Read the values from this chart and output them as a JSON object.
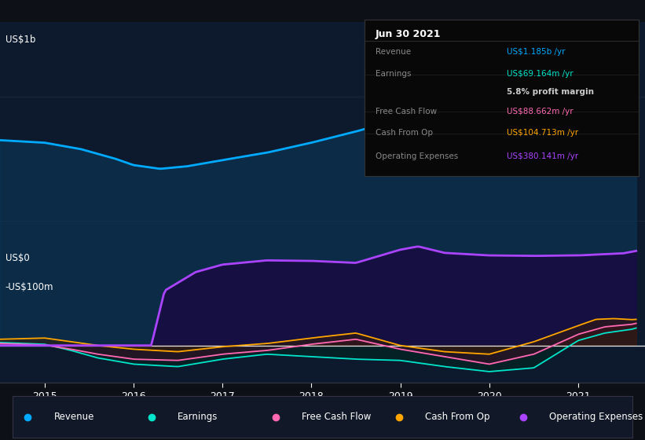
{
  "bg_color": "#0d1117",
  "plot_bg_color": "#0d1a2e",
  "title_box": {
    "date": "Jun 30 2021",
    "rows": [
      {
        "label": "Revenue",
        "value": "US$1.185b /yr",
        "value_color": "#00aaff"
      },
      {
        "label": "Earnings",
        "value": "US$69.164m /yr",
        "value_color": "#00e5cc"
      },
      {
        "label": "",
        "value": "5.8% profit margin",
        "value_color": "#cccccc"
      },
      {
        "label": "Free Cash Flow",
        "value": "US$88.662m /yr",
        "value_color": "#ff69b4"
      },
      {
        "label": "Cash From Op",
        "value": "US$104.713m /yr",
        "value_color": "#ffa500"
      },
      {
        "label": "Operating Expenses",
        "value": "US$380.141m /yr",
        "value_color": "#aa44ff"
      }
    ],
    "label_color": "#888888",
    "bg_color": "#080808",
    "border_color": "#333333"
  },
  "ylabel_top": "US$1b",
  "ylabel_zero": "US$0",
  "ylabel_bottom": "-US$100m",
  "x_ticks": [
    2015,
    2016,
    2017,
    2018,
    2019,
    2020,
    2021
  ],
  "ylim": [
    -150,
    1300
  ],
  "grid_color": "#1a2540",
  "legend_bg": "#111827",
  "legend_border": "#333344",
  "revenue_color": "#00aaff",
  "earnings_color": "#00e5cc",
  "fcf_color": "#ff69b4",
  "cash_op_color": "#ffa500",
  "op_exp_color": "#aa44ff"
}
